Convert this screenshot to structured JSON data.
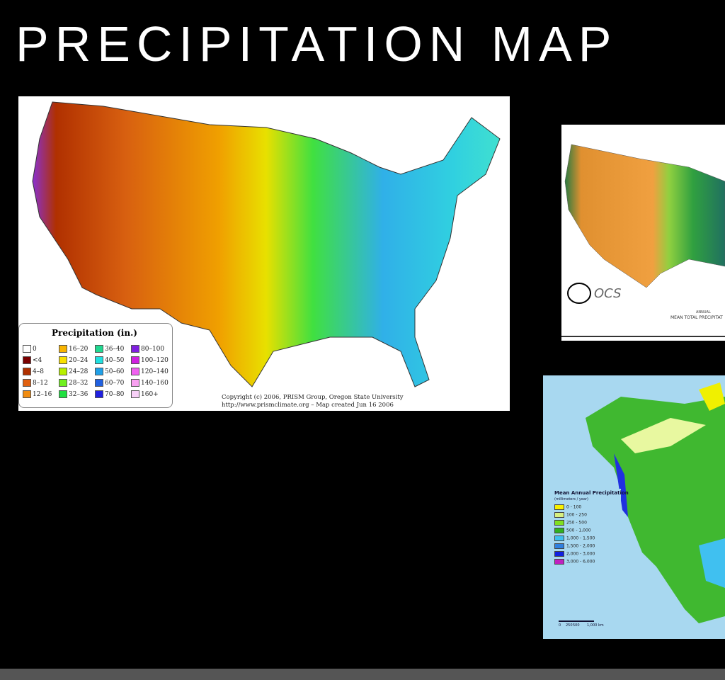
{
  "title": "PRECIPITATION MAP",
  "map1": {
    "legend_title": "Precipitation (in.)",
    "legend": [
      {
        "label": "0",
        "color": "#ffffff"
      },
      {
        "label": "<4",
        "color": "#7a0000"
      },
      {
        "label": "4–8",
        "color": "#b03000"
      },
      {
        "label": "8–12",
        "color": "#e06010"
      },
      {
        "label": "12–16",
        "color": "#f08c10"
      },
      {
        "label": "16–20",
        "color": "#f8b400"
      },
      {
        "label": "20–24",
        "color": "#f8e000"
      },
      {
        "label": "24–28",
        "color": "#b8f000"
      },
      {
        "label": "28–32",
        "color": "#70f020"
      },
      {
        "label": "32–36",
        "color": "#20e040"
      },
      {
        "label": "36–40",
        "color": "#20d890"
      },
      {
        "label": "40–50",
        "color": "#20e0e0"
      },
      {
        "label": "50–60",
        "color": "#20a0e8"
      },
      {
        "label": "60–70",
        "color": "#2060e0"
      },
      {
        "label": "70–80",
        "color": "#2020e0"
      },
      {
        "label": "80–100",
        "color": "#8020e0"
      },
      {
        "label": "100–120",
        "color": "#d020e0"
      },
      {
        "label": "120–140",
        "color": "#f060f0"
      },
      {
        "label": "140–160",
        "color": "#f8a0f0"
      },
      {
        "label": "160+",
        "color": "#f8d0f8"
      }
    ],
    "credit": [
      "Copyright (c) 2006, PRISM Group, Oregon State University",
      "http://www.prismclimate.org  –  Map created Jun 16 2006"
    ]
  },
  "map2": {
    "logo_text": "OCS",
    "caption": [
      "ANNUAL",
      "MEAN TOTAL PRECIPITAT"
    ]
  },
  "map3": {
    "legend_title": "Mean Annual Precipitation",
    "legend_subtitle": "(millimeters / year)",
    "legend": [
      {
        "label": "0 - 100",
        "color": "#f8f000"
      },
      {
        "label": "100 - 250",
        "color": "#d8f080"
      },
      {
        "label": "250 - 500",
        "color": "#80e020"
      },
      {
        "label": "500 - 1,000",
        "color": "#30b020"
      },
      {
        "label": "1,000 - 1,500",
        "color": "#40c0f0"
      },
      {
        "label": "1,500 - 2,000",
        "color": "#3080e0"
      },
      {
        "label": "2,000 - 3,000",
        "color": "#1020e0"
      },
      {
        "label": "3,000 - 6,000",
        "color": "#c020c0"
      }
    ],
    "scale": [
      "0",
      "250",
      "500",
      "1,000 km"
    ]
  }
}
